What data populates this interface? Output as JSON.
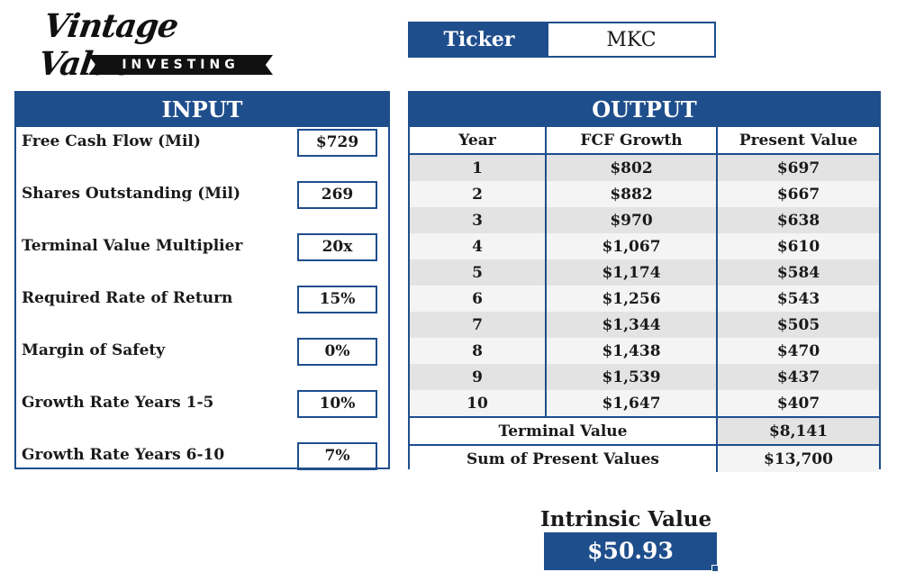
{
  "logo": {
    "brand": "Vintage Value",
    "tag": "INVESTING"
  },
  "ticker": {
    "label": "Ticker",
    "value": "MKC"
  },
  "input": {
    "title": "INPUT",
    "rows": [
      {
        "label": "Free Cash Flow (Mil)",
        "value": "$729"
      },
      {
        "label": "Shares Outstanding (Mil)",
        "value": "269"
      },
      {
        "label": "Terminal Value Multiplier",
        "value": "20x"
      },
      {
        "label": "Required Rate of Return",
        "value": "15%"
      },
      {
        "label": "Margin of Safety",
        "value": "0%"
      },
      {
        "label": "Growth Rate Years 1-5",
        "value": "10%"
      },
      {
        "label": "Growth Rate Years 6-10",
        "value": "7%"
      }
    ]
  },
  "output": {
    "title": "OUTPUT",
    "columns": [
      "Year",
      "FCF Growth",
      "Present Value"
    ],
    "rows": [
      {
        "year": "1",
        "fcf": "$802",
        "pv": "$697"
      },
      {
        "year": "2",
        "fcf": "$882",
        "pv": "$667"
      },
      {
        "year": "3",
        "fcf": "$970",
        "pv": "$638"
      },
      {
        "year": "4",
        "fcf": "$1,067",
        "pv": "$610"
      },
      {
        "year": "5",
        "fcf": "$1,174",
        "pv": "$584"
      },
      {
        "year": "6",
        "fcf": "$1,256",
        "pv": "$543"
      },
      {
        "year": "7",
        "fcf": "$1,344",
        "pv": "$505"
      },
      {
        "year": "8",
        "fcf": "$1,438",
        "pv": "$470"
      },
      {
        "year": "9",
        "fcf": "$1,539",
        "pv": "$437"
      },
      {
        "year": "10",
        "fcf": "$1,647",
        "pv": "$407"
      }
    ],
    "terminal": {
      "label": "Terminal Value",
      "value": "$8,141"
    },
    "sum": {
      "label": "Sum of Present Values",
      "value": "$13,700"
    }
  },
  "intrinsic": {
    "label": "Intrinsic Value",
    "value": "$50.93"
  },
  "colors": {
    "accent": "#1f4e8c",
    "row_alt": "#e3e3e3",
    "row_plain": "#f4f4f4"
  }
}
